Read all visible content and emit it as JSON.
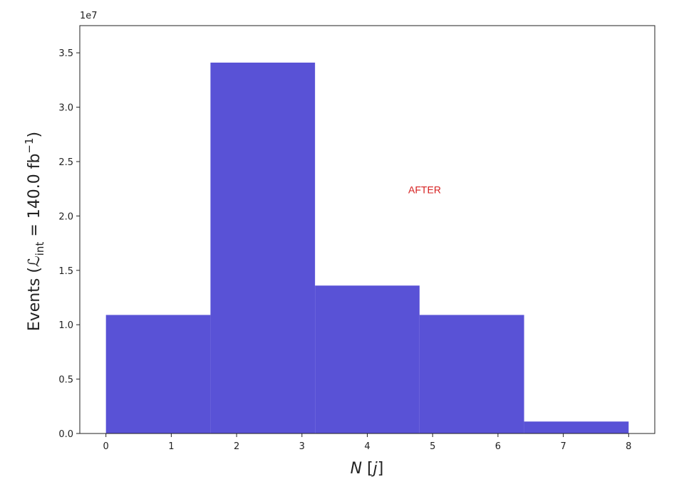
{
  "chart_data": {
    "type": "histogram",
    "bins": [
      0,
      1.6,
      3.2,
      4.8,
      6.4,
      8
    ],
    "values": [
      10900000,
      34100000,
      13600000,
      10900000,
      1100000
    ],
    "color": "#5952d6",
    "xlim": [
      -0.4,
      8.4
    ],
    "xticks": [
      0,
      1,
      2,
      3,
      4,
      5,
      6,
      7,
      8
    ],
    "ylim": [
      0,
      37500000
    ],
    "yticks": [
      {
        "value": 0,
        "label": "0.0"
      },
      {
        "value": 5000000,
        "label": "0.5"
      },
      {
        "value": 10000000,
        "label": "1.0"
      },
      {
        "value": 15000000,
        "label": "1.5"
      },
      {
        "value": 20000000,
        "label": "2.0"
      },
      {
        "value": 25000000,
        "label": "2.5"
      },
      {
        "value": 30000000,
        "label": "3.0"
      },
      {
        "value": 35000000,
        "label": "3.5"
      }
    ],
    "y_offset_label": "1e7",
    "x_label": [
      "N",
      " [",
      "j",
      "]"
    ],
    "y_label": [
      "Events (ℒ",
      "int",
      " = 140.0 fb",
      "−1",
      ")"
    ],
    "annotation": "AFTER"
  }
}
